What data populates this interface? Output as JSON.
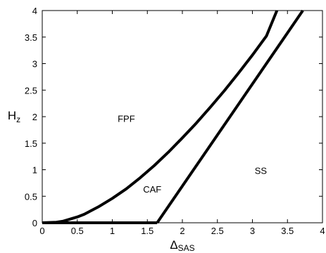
{
  "chart_data": {
    "type": "line",
    "title": "",
    "xlabel": "Δ",
    "xlabel_sub": "SAS",
    "ylabel": "H",
    "ylabel_sub": "z",
    "xlim": [
      0,
      4
    ],
    "ylim": [
      0,
      4
    ],
    "grid": false,
    "legend": "none",
    "xticks": [
      0,
      0.5,
      1,
      1.5,
      2,
      2.5,
      3,
      3.5,
      4
    ],
    "xtick_labels": [
      "0",
      "0.5",
      "1",
      "1.5",
      "2",
      "2.5",
      "3",
      "3.5",
      "4"
    ],
    "yticks": [
      0,
      0.5,
      1,
      1.5,
      2,
      2.5,
      3,
      3.5,
      4
    ],
    "ytick_labels": [
      "0",
      "0.5",
      "1",
      "1.5",
      "2",
      "2.5",
      "3",
      "3.5",
      "4"
    ],
    "series": [
      {
        "x": [
          0,
          0.2,
          0.3,
          0.4,
          0.5,
          0.6,
          0.8,
          1.0,
          1.2,
          1.4,
          1.6,
          1.8,
          2.0,
          2.2,
          2.4,
          2.6,
          2.8,
          3.0,
          3.2,
          3.35
        ],
        "y": [
          0,
          0.01,
          0.03,
          0.07,
          0.11,
          0.16,
          0.3,
          0.46,
          0.64,
          0.85,
          1.08,
          1.33,
          1.6,
          1.88,
          2.18,
          2.49,
          2.82,
          3.16,
          3.52,
          4.0
        ],
        "color": "#000000"
      },
      {
        "x": [
          0,
          0.5,
          1.0,
          1.5,
          1.64
        ],
        "y": [
          0,
          0,
          0,
          0,
          0
        ],
        "color": "#000000"
      },
      {
        "x": [
          1.64,
          3.72
        ],
        "y": [
          0,
          4.0
        ],
        "color": "#000000"
      }
    ],
    "annotations": [
      {
        "text": "FPF",
        "x": 1.2,
        "y": 1.9
      },
      {
        "text": "CAF",
        "x": 1.57,
        "y": 0.57
      },
      {
        "text": "SS",
        "x": 3.12,
        "y": 0.92
      }
    ]
  }
}
